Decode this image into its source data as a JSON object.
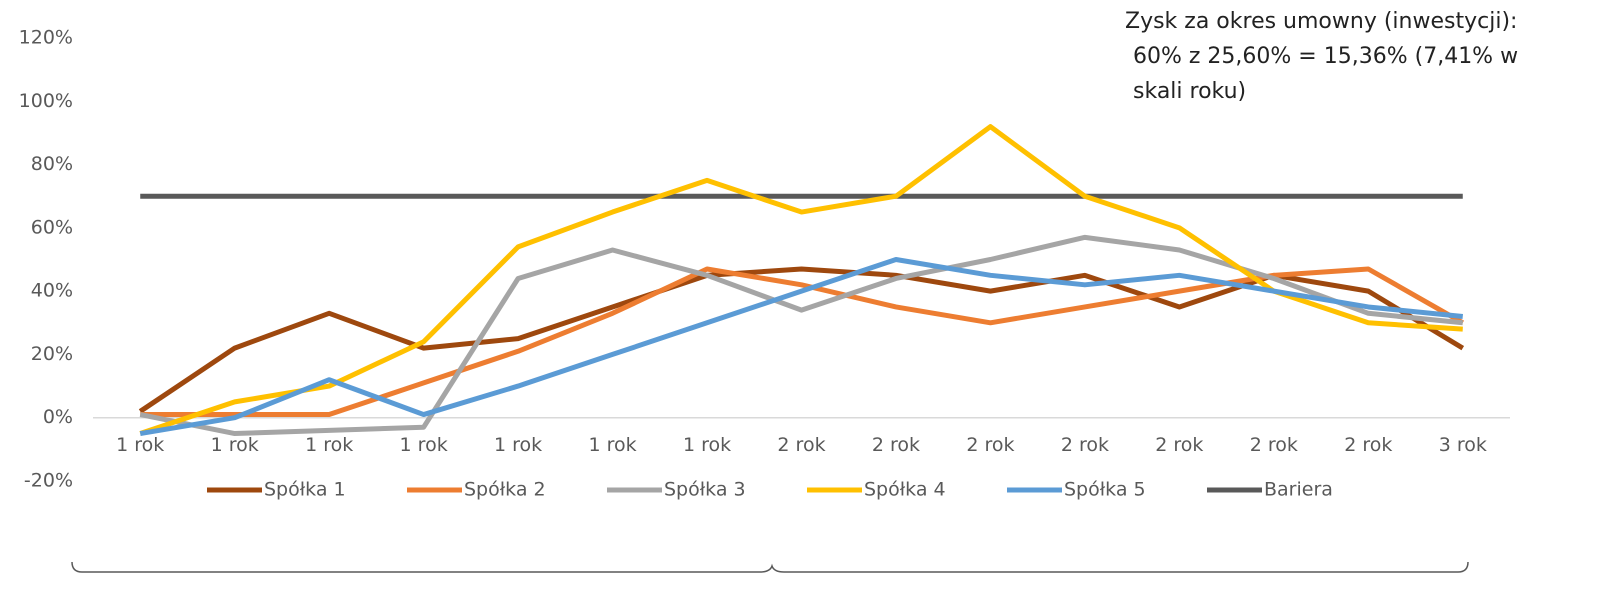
{
  "chart_data": {
    "type": "line",
    "annotation": [
      "Zysk za okres umowny (inwestycji):",
      "60% z 25,60% = 15,36% (7,41% w",
      "skali roku)"
    ],
    "categories": [
      "1 rok",
      "1 rok",
      "1 rok",
      "1 rok",
      "1 rok",
      "1 rok",
      "1 rok",
      "2 rok",
      "2 rok",
      "2 rok",
      "2 rok",
      "2 rok",
      "2 rok",
      "2 rok",
      "3 rok"
    ],
    "series": [
      {
        "name": "Spółka 1",
        "color": "#9e480e",
        "values": [
          2,
          22,
          33,
          22,
          25,
          35,
          45,
          47,
          45,
          40,
          45,
          35,
          45,
          40,
          22
        ]
      },
      {
        "name": "Spółka 2",
        "color": "#ed7d31",
        "values": [
          1,
          1,
          1,
          11,
          21,
          33,
          47,
          42,
          35,
          30,
          35,
          40,
          45,
          47,
          30
        ]
      },
      {
        "name": "Spółka 3",
        "color": "#a5a5a5",
        "values": [
          1,
          -5,
          -4,
          -3,
          44,
          53,
          45,
          34,
          44,
          50,
          57,
          53,
          44,
          33,
          30
        ]
      },
      {
        "name": "Spółka 4",
        "color": "#ffc000",
        "values": [
          -5,
          5,
          10,
          24,
          54,
          65,
          75,
          65,
          70,
          92,
          70,
          60,
          40,
          30,
          28
        ]
      },
      {
        "name": "Spółka 5",
        "color": "#5b9bd5",
        "values": [
          -5,
          0,
          12,
          1,
          10,
          20,
          30,
          40,
          50,
          45,
          42,
          45,
          40,
          35,
          32
        ]
      },
      {
        "name": "Bariera",
        "color": "#595959",
        "values": [
          70,
          70,
          70,
          70,
          70,
          70,
          70,
          70,
          70,
          70,
          70,
          70,
          70,
          70,
          70
        ]
      }
    ],
    "ylim": [
      -20,
      120
    ],
    "yticks": [
      {
        "value": -20,
        "label": "-20%"
      },
      {
        "value": 0,
        "label": "0%"
      },
      {
        "value": 20,
        "label": "20%"
      },
      {
        "value": 40,
        "label": "40%"
      },
      {
        "value": 60,
        "label": "60%"
      },
      {
        "value": 80,
        "label": "80%"
      },
      {
        "value": 100,
        "label": "100%"
      },
      {
        "value": 120,
        "label": "120%"
      }
    ],
    "grid": false
  }
}
